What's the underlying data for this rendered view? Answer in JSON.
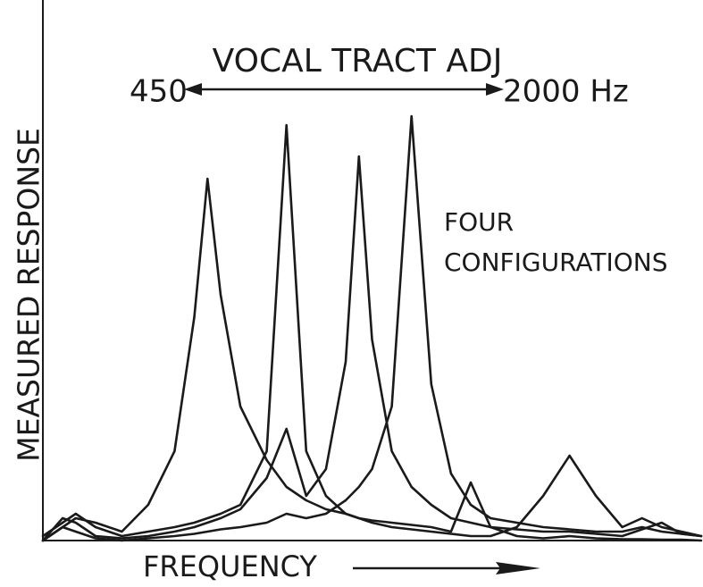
{
  "chart_data": {
    "type": "line",
    "title": "VOCAL TRACT ADJ",
    "x_label": "FREQUENCY",
    "y_label": "MEASURED RESPONSE",
    "annotations": [
      "450",
      "2000 Hz",
      "FOUR",
      "CONFIGURATIONS"
    ],
    "xlim": [
      0,
      100
    ],
    "ylim": [
      0,
      100
    ],
    "x": [
      0,
      3,
      5,
      8,
      12,
      16,
      20,
      23,
      25,
      27,
      30,
      34,
      37,
      40,
      43,
      46,
      48,
      50,
      53,
      56,
      59,
      62,
      65,
      68,
      72,
      76,
      80,
      84,
      88,
      91,
      94,
      97,
      100
    ],
    "series": [
      {
        "color": "#1a1a1a",
        "values": [
          0,
          3,
          5,
          4,
          2,
          8,
          20,
          50,
          81,
          55,
          30,
          18,
          12,
          9,
          7,
          6,
          5,
          4.5,
          4,
          3.5,
          3,
          2,
          13,
          3,
          1,
          0.5,
          1,
          0.5,
          0.3,
          0.3,
          0.2,
          0.2,
          0
        ]
      },
      {
        "color": "#1a1a1a",
        "values": [
          1,
          4,
          6,
          3,
          1,
          2,
          3,
          4,
          5,
          6,
          8,
          20,
          93,
          20,
          10,
          6,
          5,
          4,
          3,
          2.5,
          2,
          1.5,
          1,
          1,
          3,
          10,
          19,
          10,
          3,
          5,
          3,
          2,
          1
        ]
      },
      {
        "color": "#1a1a1a",
        "values": [
          0,
          5,
          4,
          1,
          0.5,
          1,
          2,
          3,
          4,
          5,
          7,
          14,
          25,
          10,
          16,
          40,
          86,
          45,
          20,
          12,
          8,
          5,
          4,
          3,
          2.5,
          2,
          2,
          1.5,
          1,
          2.5,
          4,
          1.5,
          1
        ]
      },
      {
        "color": "#1a1a1a",
        "values": [
          0,
          3,
          2,
          0.5,
          0,
          0.5,
          1,
          1.5,
          2,
          2.5,
          3,
          4,
          6,
          5,
          6,
          9,
          12,
          16,
          30,
          95,
          35,
          15,
          8,
          5,
          4,
          3,
          2.5,
          2,
          2,
          3,
          2,
          1.5,
          1
        ]
      }
    ]
  }
}
